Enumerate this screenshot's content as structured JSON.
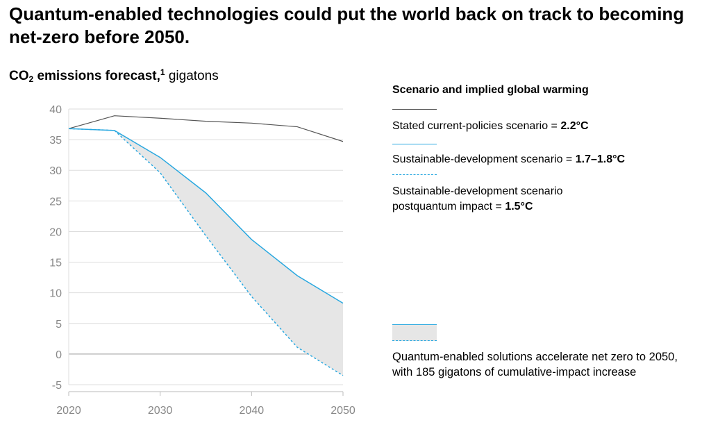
{
  "title": "Quantum-enabled technologies could put the world back on track to becoming net-zero before 2050.",
  "subtitle": {
    "main_prefix": "CO",
    "sub": "2",
    "main_suffix": " emissions forecast,",
    "footnote": "1",
    "unit": " gigatons"
  },
  "legend": {
    "heading": "Scenario and implied global warming",
    "items": [
      {
        "label": "Stated current-policies scenario = ",
        "value": "2.2°C"
      },
      {
        "label": "Sustainable-development scenario = ",
        "value": "1.7–1.8°C"
      },
      {
        "label_line1": "Sustainable-development scenario",
        "label_line2": "postquantum impact = ",
        "value": "1.5°C"
      }
    ],
    "area_note_line1": "Quantum-enabled solutions accelerate net zero to 2050,",
    "area_note_line2": "with 185 gigatons of cumulative-impact increase"
  },
  "colors": {
    "current_policies": "#555555",
    "sustainable": "#29a8e0",
    "area_fill": "#e6e6e6",
    "grid": "#dddddd",
    "zero_line": "#999999"
  },
  "chart_data": {
    "type": "line",
    "x": [
      2020,
      2025,
      2030,
      2035,
      2040,
      2045,
      2050
    ],
    "xticks": [
      "2020",
      "2030",
      "2040",
      "2050"
    ],
    "yticks": [
      "-5",
      "0",
      "5",
      "10",
      "15",
      "20",
      "25",
      "30",
      "35",
      "40"
    ],
    "ylim": [
      -5,
      40
    ],
    "xlim": [
      2020,
      2050
    ],
    "series": [
      {
        "name": "Stated current-policies scenario",
        "values": [
          36.8,
          38.9,
          38.5,
          38.0,
          37.7,
          37.1,
          34.7
        ],
        "style": "solid"
      },
      {
        "name": "Sustainable-development scenario",
        "values": [
          36.8,
          36.5,
          32.1,
          26.3,
          18.7,
          12.8,
          8.3
        ],
        "style": "solid"
      },
      {
        "name": "Sustainable-development scenario postquantum impact",
        "values": [
          36.8,
          36.5,
          29.6,
          19.3,
          9.4,
          1.1,
          -3.5
        ],
        "style": "dashed"
      }
    ],
    "grid": true
  }
}
